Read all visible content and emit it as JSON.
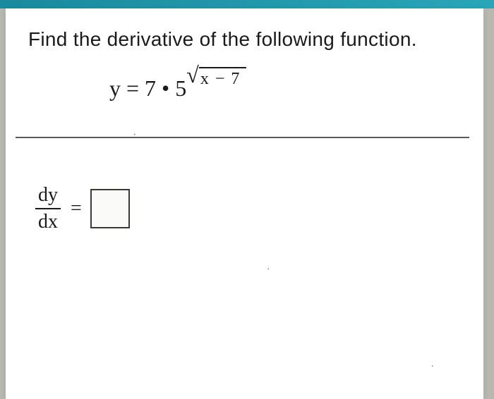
{
  "colors": {
    "page_bg": "#ffffff",
    "outer_bg": "#b8b8b0",
    "top_bar": "#1a8a9e",
    "text": "#1a1a1a",
    "divider": "#5a5a54",
    "box_border": "#3a3a34"
  },
  "typography": {
    "instruction_fontsize": 28,
    "equation_fontsize": 32,
    "exponent_fontsize": 24,
    "answer_fontsize": 28,
    "instruction_family": "Arial",
    "math_family": "Times New Roman"
  },
  "problem": {
    "instruction": "Find the derivative of the following function.",
    "equation": {
      "lhs": "y",
      "coefficient": "7",
      "dot": "•",
      "base": "5",
      "exponent_radicand": "x − 7"
    },
    "answer": {
      "deriv_numerator": "dy",
      "deriv_denominator": "dx",
      "equals": "="
    }
  }
}
